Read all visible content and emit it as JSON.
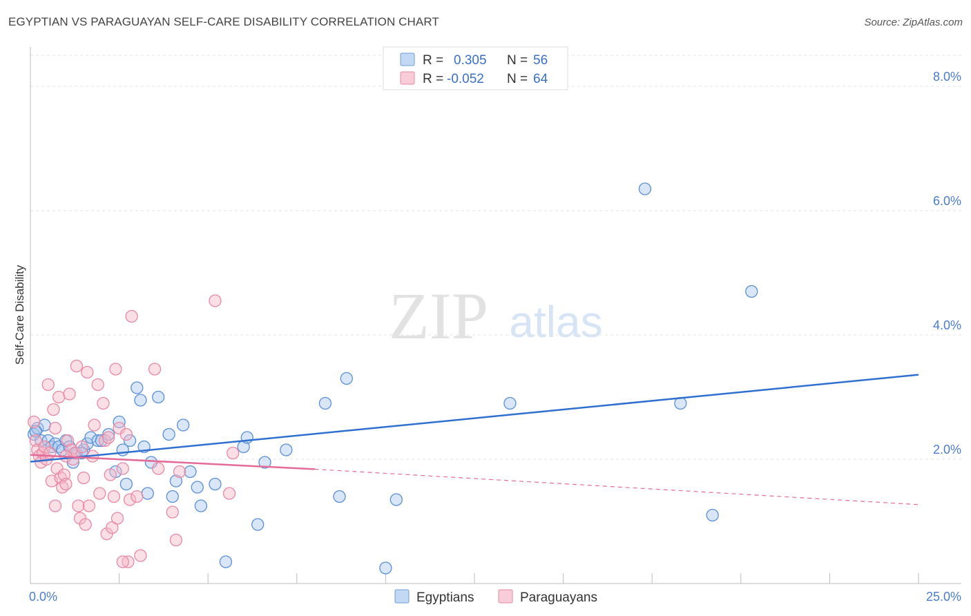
{
  "title": "EGYPTIAN VS PARAGUAYAN SELF-CARE DISABILITY CORRELATION CHART",
  "source": "Source: ZipAtlas.com",
  "watermark": {
    "zip": "ZIP",
    "atlas": "atlas"
  },
  "colors": {
    "egyptian_fill": "#a9c7ee",
    "egyptian_stroke": "#5b8fd6",
    "egyptian_line": "#2f6fd0",
    "paraguayan_fill": "#f5b8c8",
    "paraguayan_stroke": "#e889a5",
    "paraguayan_line": "#e46a97",
    "grid": "#e3e3e3",
    "tick_label": "#4a7ccc"
  },
  "legend": {
    "r_label": "R =",
    "n_label": "N =",
    "rows": [
      {
        "r": "0.305",
        "n": "56"
      },
      {
        "r": "-0.052",
        "n": "64"
      }
    ]
  },
  "bottom_legend": [
    "Egyptians",
    "Paraguayans"
  ],
  "chart_data": {
    "type": "scatter",
    "title": "EGYPTIAN VS PARAGUAYAN SELF-CARE DISABILITY CORRELATION CHART",
    "xlabel": "",
    "ylabel": "Self-Care Disability",
    "xlim": [
      0,
      25
    ],
    "ylim": [
      0,
      8.5
    ],
    "x_tick_labels": [
      "0.0%",
      "25.0%"
    ],
    "y_ticks": [
      2,
      4,
      6,
      8
    ],
    "y_tick_labels": [
      "2.0%",
      "4.0%",
      "6.0%",
      "8.0%"
    ],
    "grid": true,
    "legend_position": "top-center",
    "series": [
      {
        "name": "Egyptians",
        "r": 0.305,
        "n": 56,
        "trend": {
          "x0": 0,
          "y0": 1.96,
          "x1": 25,
          "y1": 3.36
        },
        "points": [
          [
            0.1,
            2.4
          ],
          [
            0.2,
            2.5
          ],
          [
            0.3,
            2.3
          ],
          [
            0.4,
            2.55
          ],
          [
            0.5,
            2.3
          ],
          [
            0.6,
            2.2
          ],
          [
            0.7,
            2.25
          ],
          [
            0.8,
            2.2
          ],
          [
            0.9,
            2.15
          ],
          [
            1.0,
            2.3
          ],
          [
            1.1,
            2.2
          ],
          [
            1.2,
            1.95
          ],
          [
            1.3,
            2.1
          ],
          [
            1.5,
            2.15
          ],
          [
            1.6,
            2.25
          ],
          [
            1.7,
            2.35
          ],
          [
            1.9,
            2.3
          ],
          [
            2.0,
            2.3
          ],
          [
            2.2,
            2.4
          ],
          [
            2.4,
            1.8
          ],
          [
            2.5,
            2.6
          ],
          [
            2.6,
            2.15
          ],
          [
            2.7,
            1.6
          ],
          [
            2.8,
            2.3
          ],
          [
            3.0,
            3.15
          ],
          [
            3.1,
            2.95
          ],
          [
            3.2,
            2.2
          ],
          [
            3.3,
            1.45
          ],
          [
            3.4,
            1.95
          ],
          [
            3.6,
            3.0
          ],
          [
            3.9,
            2.4
          ],
          [
            4.0,
            1.4
          ],
          [
            4.1,
            1.65
          ],
          [
            4.3,
            2.55
          ],
          [
            4.5,
            1.8
          ],
          [
            4.7,
            1.55
          ],
          [
            4.8,
            1.25
          ],
          [
            5.2,
            1.6
          ],
          [
            5.5,
            0.35
          ],
          [
            6.0,
            2.2
          ],
          [
            6.1,
            2.35
          ],
          [
            6.4,
            0.95
          ],
          [
            6.6,
            1.95
          ],
          [
            7.2,
            2.15
          ],
          [
            8.3,
            2.9
          ],
          [
            8.7,
            1.4
          ],
          [
            8.9,
            3.3
          ],
          [
            10.0,
            0.25
          ],
          [
            10.3,
            1.35
          ],
          [
            13.5,
            2.9
          ],
          [
            17.3,
            6.35
          ],
          [
            18.3,
            2.9
          ],
          [
            19.2,
            1.1
          ],
          [
            20.3,
            4.7
          ],
          [
            0.15,
            2.45
          ],
          [
            1.45,
            2.1
          ]
        ]
      },
      {
        "name": "Paraguayans",
        "r": -0.052,
        "n": 64,
        "trend": {
          "x0": 0,
          "y0": 2.07,
          "x1": 8,
          "y1": 1.84
        },
        "trend_dashed": {
          "x0": 8,
          "y0": 1.84,
          "x1": 25,
          "y1": 1.27
        },
        "points": [
          [
            0.1,
            2.6
          ],
          [
            0.15,
            2.3
          ],
          [
            0.2,
            2.15
          ],
          [
            0.25,
            2.05
          ],
          [
            0.3,
            1.95
          ],
          [
            0.35,
            2.1
          ],
          [
            0.4,
            2.2
          ],
          [
            0.45,
            2.0
          ],
          [
            0.5,
            3.2
          ],
          [
            0.55,
            2.1
          ],
          [
            0.6,
            1.65
          ],
          [
            0.65,
            2.8
          ],
          [
            0.7,
            2.5
          ],
          [
            0.75,
            1.85
          ],
          [
            0.8,
            3.0
          ],
          [
            0.85,
            1.7
          ],
          [
            0.9,
            1.55
          ],
          [
            0.95,
            1.75
          ],
          [
            1.0,
            1.6
          ],
          [
            1.05,
            2.3
          ],
          [
            1.1,
            3.05
          ],
          [
            1.15,
            2.15
          ],
          [
            1.2,
            2.0
          ],
          [
            1.25,
            2.1
          ],
          [
            1.3,
            3.5
          ],
          [
            1.35,
            1.25
          ],
          [
            1.4,
            1.05
          ],
          [
            1.45,
            2.2
          ],
          [
            1.5,
            1.7
          ],
          [
            1.55,
            0.95
          ],
          [
            1.6,
            3.4
          ],
          [
            1.65,
            1.25
          ],
          [
            1.8,
            2.55
          ],
          [
            1.9,
            3.2
          ],
          [
            1.95,
            1.45
          ],
          [
            2.05,
            2.9
          ],
          [
            2.1,
            2.3
          ],
          [
            2.15,
            0.8
          ],
          [
            2.2,
            2.35
          ],
          [
            2.25,
            1.75
          ],
          [
            2.3,
            0.9
          ],
          [
            2.35,
            1.4
          ],
          [
            2.4,
            3.45
          ],
          [
            2.45,
            1.05
          ],
          [
            2.5,
            2.5
          ],
          [
            2.6,
            1.85
          ],
          [
            2.7,
            2.4
          ],
          [
            2.75,
            0.35
          ],
          [
            2.8,
            1.35
          ],
          [
            2.85,
            4.3
          ],
          [
            3.0,
            1.4
          ],
          [
            3.1,
            0.45
          ],
          [
            3.5,
            3.45
          ],
          [
            3.6,
            1.85
          ],
          [
            4.0,
            1.15
          ],
          [
            4.1,
            0.7
          ],
          [
            4.2,
            1.8
          ],
          [
            5.2,
            4.55
          ],
          [
            5.6,
            1.45
          ],
          [
            5.7,
            2.1
          ],
          [
            0.7,
            1.25
          ],
          [
            1.0,
            2.05
          ],
          [
            2.6,
            0.35
          ],
          [
            1.75,
            2.05
          ]
        ]
      }
    ]
  }
}
